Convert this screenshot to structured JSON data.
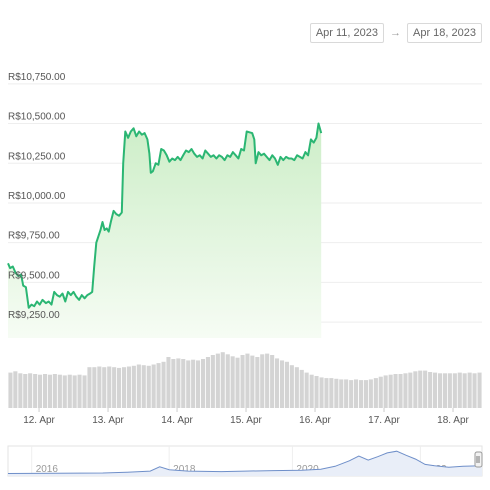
{
  "range": {
    "from": "Apr 11, 2023",
    "to": "Apr 18, 2023",
    "arrow": "→"
  },
  "colors": {
    "line": "#2bb673",
    "fill_top": "#cdeec8",
    "fill_bottom": "#f6fcf4",
    "volume": "#d4d4d4",
    "grid": "#eeeeee",
    "text": "#555555",
    "nav_line": "#6f8fc9"
  },
  "chart_data": {
    "type": "area",
    "title": "",
    "xlabel": "",
    "ylabel": "",
    "currency_prefix": "R$",
    "ylim": [
      9150,
      10900
    ],
    "yticks": [
      9250,
      9500,
      9750,
      10000,
      10250,
      10500,
      10750
    ],
    "ytick_labels": [
      "R$9,250.00",
      "R$9,500.00",
      "R$9,750.00",
      "R$10,000.00",
      "R$10,250.00",
      "R$10,500.00",
      "R$10,750.00"
    ],
    "xlim": [
      11.55,
      18.42
    ],
    "xticks": [
      12,
      13,
      14,
      15,
      16,
      17,
      18
    ],
    "xtick_labels": [
      "12. Apr",
      "13. Apr",
      "14. Apr",
      "15. Apr",
      "16. Apr",
      "17. Apr",
      "18. Apr"
    ],
    "grid": true,
    "series": [
      {
        "values": [
          [
            11.55,
            9620
          ],
          [
            11.58,
            9590
          ],
          [
            11.62,
            9600
          ],
          [
            11.66,
            9560
          ],
          [
            11.7,
            9540
          ],
          [
            11.74,
            9550
          ],
          [
            11.77,
            9480
          ],
          [
            11.81,
            9470
          ],
          [
            11.85,
            9340
          ],
          [
            11.89,
            9360
          ],
          [
            11.93,
            9350
          ],
          [
            11.97,
            9380
          ],
          [
            12.01,
            9360
          ],
          [
            12.05,
            9390
          ],
          [
            12.1,
            9370
          ],
          [
            12.14,
            9380
          ],
          [
            12.18,
            9360
          ],
          [
            12.22,
            9440
          ],
          [
            12.26,
            9420
          ],
          [
            12.3,
            9410
          ],
          [
            12.34,
            9430
          ],
          [
            12.38,
            9380
          ],
          [
            12.42,
            9440
          ],
          [
            12.46,
            9420
          ],
          [
            12.5,
            9440
          ],
          [
            12.54,
            9410
          ],
          [
            12.58,
            9390
          ],
          [
            12.62,
            9420
          ],
          [
            12.66,
            9400
          ],
          [
            12.7,
            9420
          ],
          [
            12.74,
            9430
          ],
          [
            12.77,
            9440
          ],
          [
            12.8,
            9600
          ],
          [
            12.83,
            9750
          ],
          [
            12.86,
            9790
          ],
          [
            12.89,
            9830
          ],
          [
            12.92,
            9880
          ],
          [
            12.95,
            9830
          ],
          [
            12.98,
            9840
          ],
          [
            13.01,
            9820
          ],
          [
            13.04,
            9880
          ],
          [
            13.08,
            9950
          ],
          [
            13.12,
            9930
          ],
          [
            13.16,
            9920
          ],
          [
            13.2,
            9940
          ],
          [
            13.22,
            10250
          ],
          [
            13.25,
            10450
          ],
          [
            13.29,
            10410
          ],
          [
            13.33,
            10450
          ],
          [
            13.37,
            10470
          ],
          [
            13.41,
            10420
          ],
          [
            13.45,
            10450
          ],
          [
            13.49,
            10430
          ],
          [
            13.53,
            10440
          ],
          [
            13.57,
            10400
          ],
          [
            13.6,
            10310
          ],
          [
            13.62,
            10190
          ],
          [
            13.65,
            10200
          ],
          [
            13.69,
            10250
          ],
          [
            13.73,
            10240
          ],
          [
            13.77,
            10340
          ],
          [
            13.81,
            10330
          ],
          [
            13.85,
            10300
          ],
          [
            13.89,
            10260
          ],
          [
            13.93,
            10280
          ],
          [
            13.97,
            10270
          ],
          [
            14.01,
            10290
          ],
          [
            14.05,
            10270
          ],
          [
            14.09,
            10300
          ],
          [
            14.13,
            10330
          ],
          [
            14.17,
            10320
          ],
          [
            14.21,
            10340
          ],
          [
            14.25,
            10310
          ],
          [
            14.29,
            10290
          ],
          [
            14.33,
            10300
          ],
          [
            14.37,
            10280
          ],
          [
            14.41,
            10330
          ],
          [
            14.45,
            10310
          ],
          [
            14.49,
            10290
          ],
          [
            14.53,
            10300
          ],
          [
            14.57,
            10280
          ],
          [
            14.61,
            10300
          ],
          [
            14.65,
            10290
          ],
          [
            14.69,
            10270
          ],
          [
            14.73,
            10300
          ],
          [
            14.77,
            10290
          ],
          [
            14.81,
            10320
          ],
          [
            14.85,
            10300
          ],
          [
            14.89,
            10280
          ],
          [
            14.93,
            10340
          ],
          [
            14.97,
            10330
          ],
          [
            15.01,
            10450
          ],
          [
            15.05,
            10445
          ],
          [
            15.09,
            10440
          ],
          [
            15.12,
            10400
          ],
          [
            15.14,
            10250
          ],
          [
            15.18,
            10320
          ],
          [
            15.22,
            10300
          ],
          [
            15.26,
            10310
          ],
          [
            15.3,
            10290
          ],
          [
            15.34,
            10270
          ],
          [
            15.38,
            10300
          ],
          [
            15.42,
            10280
          ],
          [
            15.46,
            10240
          ],
          [
            15.5,
            10290
          ],
          [
            15.54,
            10270
          ],
          [
            15.58,
            10290
          ],
          [
            15.62,
            10280
          ],
          [
            15.66,
            10280
          ],
          [
            15.7,
            10270
          ],
          [
            15.74,
            10300
          ],
          [
            15.78,
            10290
          ],
          [
            15.82,
            10280
          ],
          [
            15.86,
            10320
          ],
          [
            15.9,
            10300
          ],
          [
            15.94,
            10400
          ],
          [
            15.98,
            10380
          ],
          [
            16.02,
            10410
          ],
          [
            16.05,
            10500
          ],
          [
            16.09,
            10440
          ]
        ]
      }
    ],
    "volume": [
      0.52,
      0.54,
      0.51,
      0.5,
      0.51,
      0.5,
      0.49,
      0.5,
      0.49,
      0.5,
      0.49,
      0.48,
      0.49,
      0.48,
      0.49,
      0.48,
      0.6,
      0.6,
      0.61,
      0.6,
      0.61,
      0.6,
      0.59,
      0.6,
      0.61,
      0.62,
      0.64,
      0.63,
      0.62,
      0.64,
      0.66,
      0.68,
      0.75,
      0.72,
      0.73,
      0.72,
      0.7,
      0.71,
      0.7,
      0.72,
      0.75,
      0.78,
      0.8,
      0.82,
      0.79,
      0.76,
      0.74,
      0.78,
      0.8,
      0.77,
      0.75,
      0.79,
      0.8,
      0.78,
      0.73,
      0.7,
      0.68,
      0.63,
      0.6,
      0.56,
      0.52,
      0.49,
      0.47,
      0.45,
      0.44,
      0.44,
      0.43,
      0.42,
      0.42,
      0.41,
      0.42,
      0.41,
      0.41,
      0.42,
      0.44,
      0.46,
      0.48,
      0.49,
      0.5,
      0.5,
      0.51,
      0.52,
      0.54,
      0.55,
      0.55,
      0.53,
      0.52,
      0.51,
      0.51,
      0.51,
      0.51,
      0.52,
      0.51,
      0.52,
      0.51,
      0.52
    ],
    "navigator": {
      "labels": [
        "2016",
        "2018",
        "2020",
        "2022"
      ],
      "label_x": [
        0.05,
        0.34,
        0.6,
        0.87
      ],
      "values": [
        [
          0.0,
          0.02
        ],
        [
          0.1,
          0.03
        ],
        [
          0.2,
          0.04
        ],
        [
          0.25,
          0.07
        ],
        [
          0.3,
          0.12
        ],
        [
          0.32,
          0.3
        ],
        [
          0.34,
          0.18
        ],
        [
          0.38,
          0.12
        ],
        [
          0.45,
          0.1
        ],
        [
          0.5,
          0.12
        ],
        [
          0.56,
          0.14
        ],
        [
          0.62,
          0.16
        ],
        [
          0.66,
          0.2
        ],
        [
          0.69,
          0.32
        ],
        [
          0.72,
          0.55
        ],
        [
          0.74,
          0.75
        ],
        [
          0.76,
          0.58
        ],
        [
          0.78,
          0.72
        ],
        [
          0.8,
          0.88
        ],
        [
          0.82,
          0.95
        ],
        [
          0.84,
          0.78
        ],
        [
          0.86,
          0.62
        ],
        [
          0.88,
          0.4
        ],
        [
          0.9,
          0.34
        ],
        [
          0.93,
          0.28
        ],
        [
          0.96,
          0.32
        ],
        [
          1.0,
          0.34
        ]
      ]
    }
  }
}
